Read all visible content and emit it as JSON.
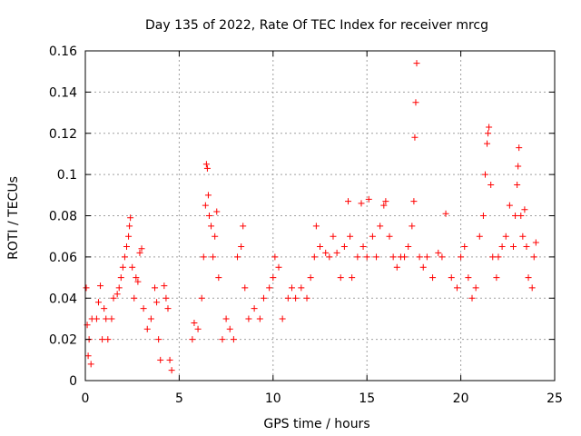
{
  "chart_data": {
    "type": "scatter",
    "title": "Day 135 of 2022, Rate Of TEC Index for receiver mrcg",
    "xlabel": "GPS time / hours",
    "ylabel": "ROTI / TECUs",
    "xlim": [
      0,
      25
    ],
    "ylim": [
      0,
      0.16
    ],
    "x_ticks": [
      "0",
      "5",
      "10",
      "15",
      "20",
      "25"
    ],
    "y_ticks": [
      "0",
      "0.02",
      "0.04",
      "0.06",
      "0.08",
      "0.1",
      "0.12",
      "0.14",
      "0.16"
    ],
    "grid": true,
    "marker": "plus",
    "color": "#ff0000",
    "series": [
      {
        "name": "ROTI",
        "points": [
          [
            0.05,
            0.045
          ],
          [
            0.1,
            0.027
          ],
          [
            0.15,
            0.012
          ],
          [
            0.2,
            0.02
          ],
          [
            0.3,
            0.008
          ],
          [
            0.35,
            0.03
          ],
          [
            0.6,
            0.03
          ],
          [
            0.7,
            0.038
          ],
          [
            0.8,
            0.046
          ],
          [
            0.9,
            0.02
          ],
          [
            1.0,
            0.035
          ],
          [
            1.1,
            0.03
          ],
          [
            1.2,
            0.02
          ],
          [
            1.4,
            0.03
          ],
          [
            1.5,
            0.04
          ],
          [
            1.7,
            0.042
          ],
          [
            1.8,
            0.045
          ],
          [
            1.9,
            0.05
          ],
          [
            2.0,
            0.055
          ],
          [
            2.1,
            0.06
          ],
          [
            2.2,
            0.065
          ],
          [
            2.3,
            0.07
          ],
          [
            2.35,
            0.075
          ],
          [
            2.4,
            0.079
          ],
          [
            2.5,
            0.055
          ],
          [
            2.6,
            0.04
          ],
          [
            2.7,
            0.05
          ],
          [
            2.8,
            0.048
          ],
          [
            2.9,
            0.062
          ],
          [
            3.0,
            0.064
          ],
          [
            3.1,
            0.035
          ],
          [
            3.3,
            0.025
          ],
          [
            3.5,
            0.03
          ],
          [
            3.7,
            0.045
          ],
          [
            3.8,
            0.038
          ],
          [
            3.9,
            0.02
          ],
          [
            4.0,
            0.01
          ],
          [
            4.2,
            0.046
          ],
          [
            4.3,
            0.04
          ],
          [
            4.4,
            0.035
          ],
          [
            4.5,
            0.01
          ],
          [
            4.6,
            0.005
          ],
          [
            5.7,
            0.02
          ],
          [
            5.8,
            0.028
          ],
          [
            6.0,
            0.025
          ],
          [
            6.2,
            0.04
          ],
          [
            6.3,
            0.06
          ],
          [
            6.4,
            0.085
          ],
          [
            6.45,
            0.105
          ],
          [
            6.5,
            0.103
          ],
          [
            6.55,
            0.09
          ],
          [
            6.6,
            0.08
          ],
          [
            6.7,
            0.075
          ],
          [
            6.8,
            0.06
          ],
          [
            6.9,
            0.07
          ],
          [
            7.0,
            0.082
          ],
          [
            7.1,
            0.05
          ],
          [
            7.3,
            0.02
          ],
          [
            7.5,
            0.03
          ],
          [
            7.7,
            0.025
          ],
          [
            7.9,
            0.02
          ],
          [
            8.1,
            0.06
          ],
          [
            8.3,
            0.065
          ],
          [
            8.4,
            0.075
          ],
          [
            8.5,
            0.045
          ],
          [
            8.7,
            0.03
          ],
          [
            9.0,
            0.035
          ],
          [
            9.3,
            0.03
          ],
          [
            9.5,
            0.04
          ],
          [
            9.8,
            0.045
          ],
          [
            10.0,
            0.05
          ],
          [
            10.1,
            0.06
          ],
          [
            10.3,
            0.055
          ],
          [
            10.5,
            0.03
          ],
          [
            10.8,
            0.04
          ],
          [
            11.0,
            0.045
          ],
          [
            11.2,
            0.04
          ],
          [
            11.5,
            0.045
          ],
          [
            11.8,
            0.04
          ],
          [
            12.0,
            0.05
          ],
          [
            12.2,
            0.06
          ],
          [
            12.3,
            0.075
          ],
          [
            12.5,
            0.065
          ],
          [
            12.8,
            0.062
          ],
          [
            13.0,
            0.06
          ],
          [
            13.2,
            0.07
          ],
          [
            13.4,
            0.062
          ],
          [
            13.6,
            0.05
          ],
          [
            13.8,
            0.065
          ],
          [
            14.0,
            0.087
          ],
          [
            14.1,
            0.07
          ],
          [
            14.2,
            0.05
          ],
          [
            14.5,
            0.06
          ],
          [
            14.7,
            0.086
          ],
          [
            14.8,
            0.065
          ],
          [
            15.0,
            0.06
          ],
          [
            15.1,
            0.088
          ],
          [
            15.3,
            0.07
          ],
          [
            15.5,
            0.06
          ],
          [
            15.7,
            0.075
          ],
          [
            15.9,
            0.085
          ],
          [
            16.0,
            0.087
          ],
          [
            16.2,
            0.07
          ],
          [
            16.4,
            0.06
          ],
          [
            16.6,
            0.055
          ],
          [
            16.8,
            0.06
          ],
          [
            17.0,
            0.06
          ],
          [
            17.2,
            0.065
          ],
          [
            17.4,
            0.075
          ],
          [
            17.5,
            0.087
          ],
          [
            17.55,
            0.118
          ],
          [
            17.6,
            0.135
          ],
          [
            17.65,
            0.154
          ],
          [
            17.8,
            0.06
          ],
          [
            18.0,
            0.055
          ],
          [
            18.2,
            0.06
          ],
          [
            18.5,
            0.05
          ],
          [
            18.8,
            0.062
          ],
          [
            19.0,
            0.06
          ],
          [
            19.2,
            0.081
          ],
          [
            19.5,
            0.05
          ],
          [
            19.8,
            0.045
          ],
          [
            20.0,
            0.06
          ],
          [
            20.2,
            0.065
          ],
          [
            20.4,
            0.05
          ],
          [
            20.6,
            0.04
          ],
          [
            20.8,
            0.045
          ],
          [
            21.0,
            0.07
          ],
          [
            21.2,
            0.08
          ],
          [
            21.3,
            0.1
          ],
          [
            21.4,
            0.115
          ],
          [
            21.45,
            0.12
          ],
          [
            21.5,
            0.123
          ],
          [
            21.6,
            0.095
          ],
          [
            21.7,
            0.06
          ],
          [
            21.9,
            0.05
          ],
          [
            22.0,
            0.06
          ],
          [
            22.2,
            0.065
          ],
          [
            22.4,
            0.07
          ],
          [
            22.6,
            0.085
          ],
          [
            22.8,
            0.065
          ],
          [
            22.9,
            0.08
          ],
          [
            23.0,
            0.095
          ],
          [
            23.05,
            0.104
          ],
          [
            23.1,
            0.113
          ],
          [
            23.2,
            0.08
          ],
          [
            23.3,
            0.07
          ],
          [
            23.4,
            0.083
          ],
          [
            23.5,
            0.065
          ],
          [
            23.6,
            0.05
          ],
          [
            23.8,
            0.045
          ],
          [
            23.9,
            0.06
          ],
          [
            24.0,
            0.067
          ]
        ]
      }
    ]
  }
}
